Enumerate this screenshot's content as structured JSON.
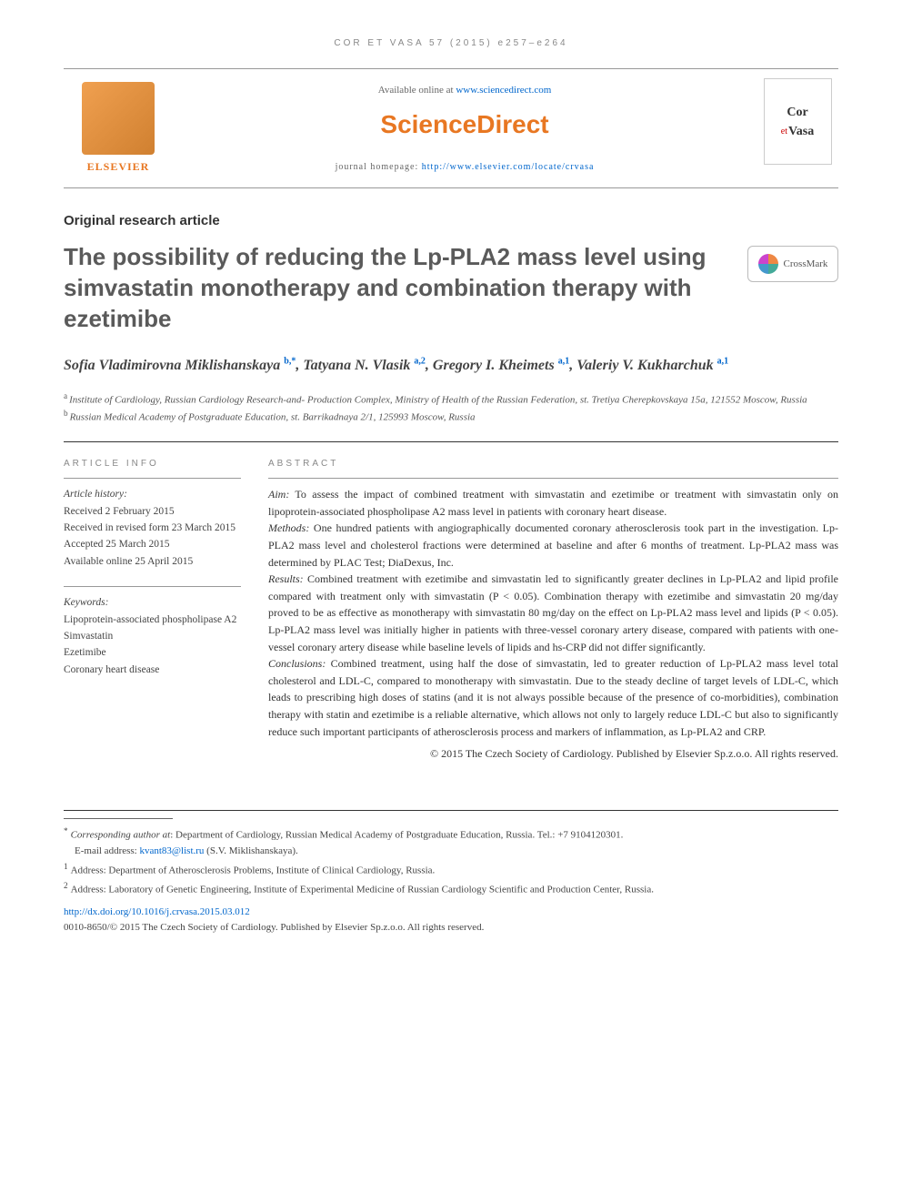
{
  "running_head": "COR ET VASA 57 (2015) e257–e264",
  "header": {
    "available_prefix": "Available online at ",
    "available_url": "www.sciencedirect.com",
    "brand": "ScienceDirect",
    "homepage_prefix": "journal homepage: ",
    "homepage_url": "http://www.elsevier.com/locate/crvasa",
    "publisher": "ELSEVIER",
    "journal_cover_line1": "Cor",
    "journal_cover_line2": "Vasa",
    "journal_cover_et": "et"
  },
  "article_type": "Original research article",
  "title": "The possibility of reducing the Lp-PLA2 mass level using simvastatin monotherapy and combination therapy with ezetimibe",
  "crossmark": "CrossMark",
  "authors_html": "Sofia Vladimirovna Miklishanskaya <sup>b,*</sup>, Tatyana N. Vlasik <sup>a,2</sup>, Gregory I. Kheimets <sup>a,1</sup>, Valeriy V. Kukharchuk <sup>a,1</sup>",
  "affiliations": {
    "a": "Institute of Cardiology, Russian Cardiology Research-and- Production Complex, Ministry of Health of the Russian Federation, st. Tretiya Cherepkovskaya 15a, 121552 Moscow, Russia",
    "b": "Russian Medical Academy of Postgraduate Education, st. Barrikadnaya 2/1, 125993 Moscow, Russia"
  },
  "info_head": "ARTICLE INFO",
  "abstract_head": "ABSTRACT",
  "history": {
    "label": "Article history:",
    "received": "Received 2 February 2015",
    "revised": "Received in revised form 23 March 2015",
    "accepted": "Accepted 25 March 2015",
    "online": "Available online 25 April 2015"
  },
  "keywords": {
    "label": "Keywords:",
    "items": [
      "Lipoprotein-associated phospholipase A2",
      "Simvastatin",
      "Ezetimibe",
      "Coronary heart disease"
    ]
  },
  "abstract": {
    "aim_label": "Aim:",
    "aim": " To assess the impact of combined treatment with simvastatin and ezetimibe or treatment with simvastatin only on lipoprotein-associated phospholipase A2 mass level in patients with coronary heart disease.",
    "methods_label": "Methods:",
    "methods": " One hundred patients with angiographically documented coronary atherosclerosis took part in the investigation. Lp-PLA2 mass level and cholesterol fractions were determined at baseline and after 6 months of treatment. Lp-PLA2 mass was determined by PLAC Test; DiaDexus, Inc.",
    "results_label": "Results:",
    "results": " Combined treatment with ezetimibe and simvastatin led to significantly greater declines in Lp-PLA2 and lipid profile compared with treatment only with simvastatin (P < 0.05). Combination therapy with ezetimibe and simvastatin 20 mg/day proved to be as effective as monotherapy with simvastatin 80 mg/day on the effect on Lp-PLA2 mass level and lipids (P < 0.05). Lp-PLA2 mass level was initially higher in patients with three-vessel coronary artery disease, compared with patients with one-vessel coronary artery disease while baseline levels of lipids and hs-CRP did not differ significantly.",
    "conclusions_label": "Conclusions:",
    "conclusions": " Combined treatment, using half the dose of simvastatin, led to greater reduction of Lp-PLA2 mass level total cholesterol and LDL-C, compared to monotherapy with simvastatin. Due to the steady decline of target levels of LDL-C, which leads to prescribing high doses of statins (and it is not always possible because of the presence of co-morbidities), combination therapy with statin and ezetimibe is a reliable alternative, which allows not only to largely reduce LDL-C but also to significantly reduce such important participants of atherosclerosis process and markers of inflammation, as Lp-PLA2 and CRP."
  },
  "copyright": "© 2015 The Czech Society of Cardiology. Published by Elsevier Sp.z.o.o. All rights reserved.",
  "footnotes": {
    "corr_label": "Corresponding author at",
    "corr": ": Department of Cardiology, Russian Medical Academy of Postgraduate Education, Russia. Tel.: +7 9104120301.",
    "email_label": "E-mail address: ",
    "email": "kvant83@list.ru",
    "email_suffix": " (S.V. Miklishanskaya).",
    "note1": "Address: Department of Atherosclerosis Problems, Institute of Clinical Cardiology, Russia.",
    "note2": "Address: Laboratory of Genetic Engineering, Institute of Experimental Medicine of Russian Cardiology Scientific and Production Center, Russia.",
    "doi": "http://dx.doi.org/10.1016/j.crvasa.2015.03.012",
    "issn": "0010-8650/© 2015 The Czech Society of Cardiology. Published by Elsevier Sp.z.o.o. All rights reserved."
  }
}
